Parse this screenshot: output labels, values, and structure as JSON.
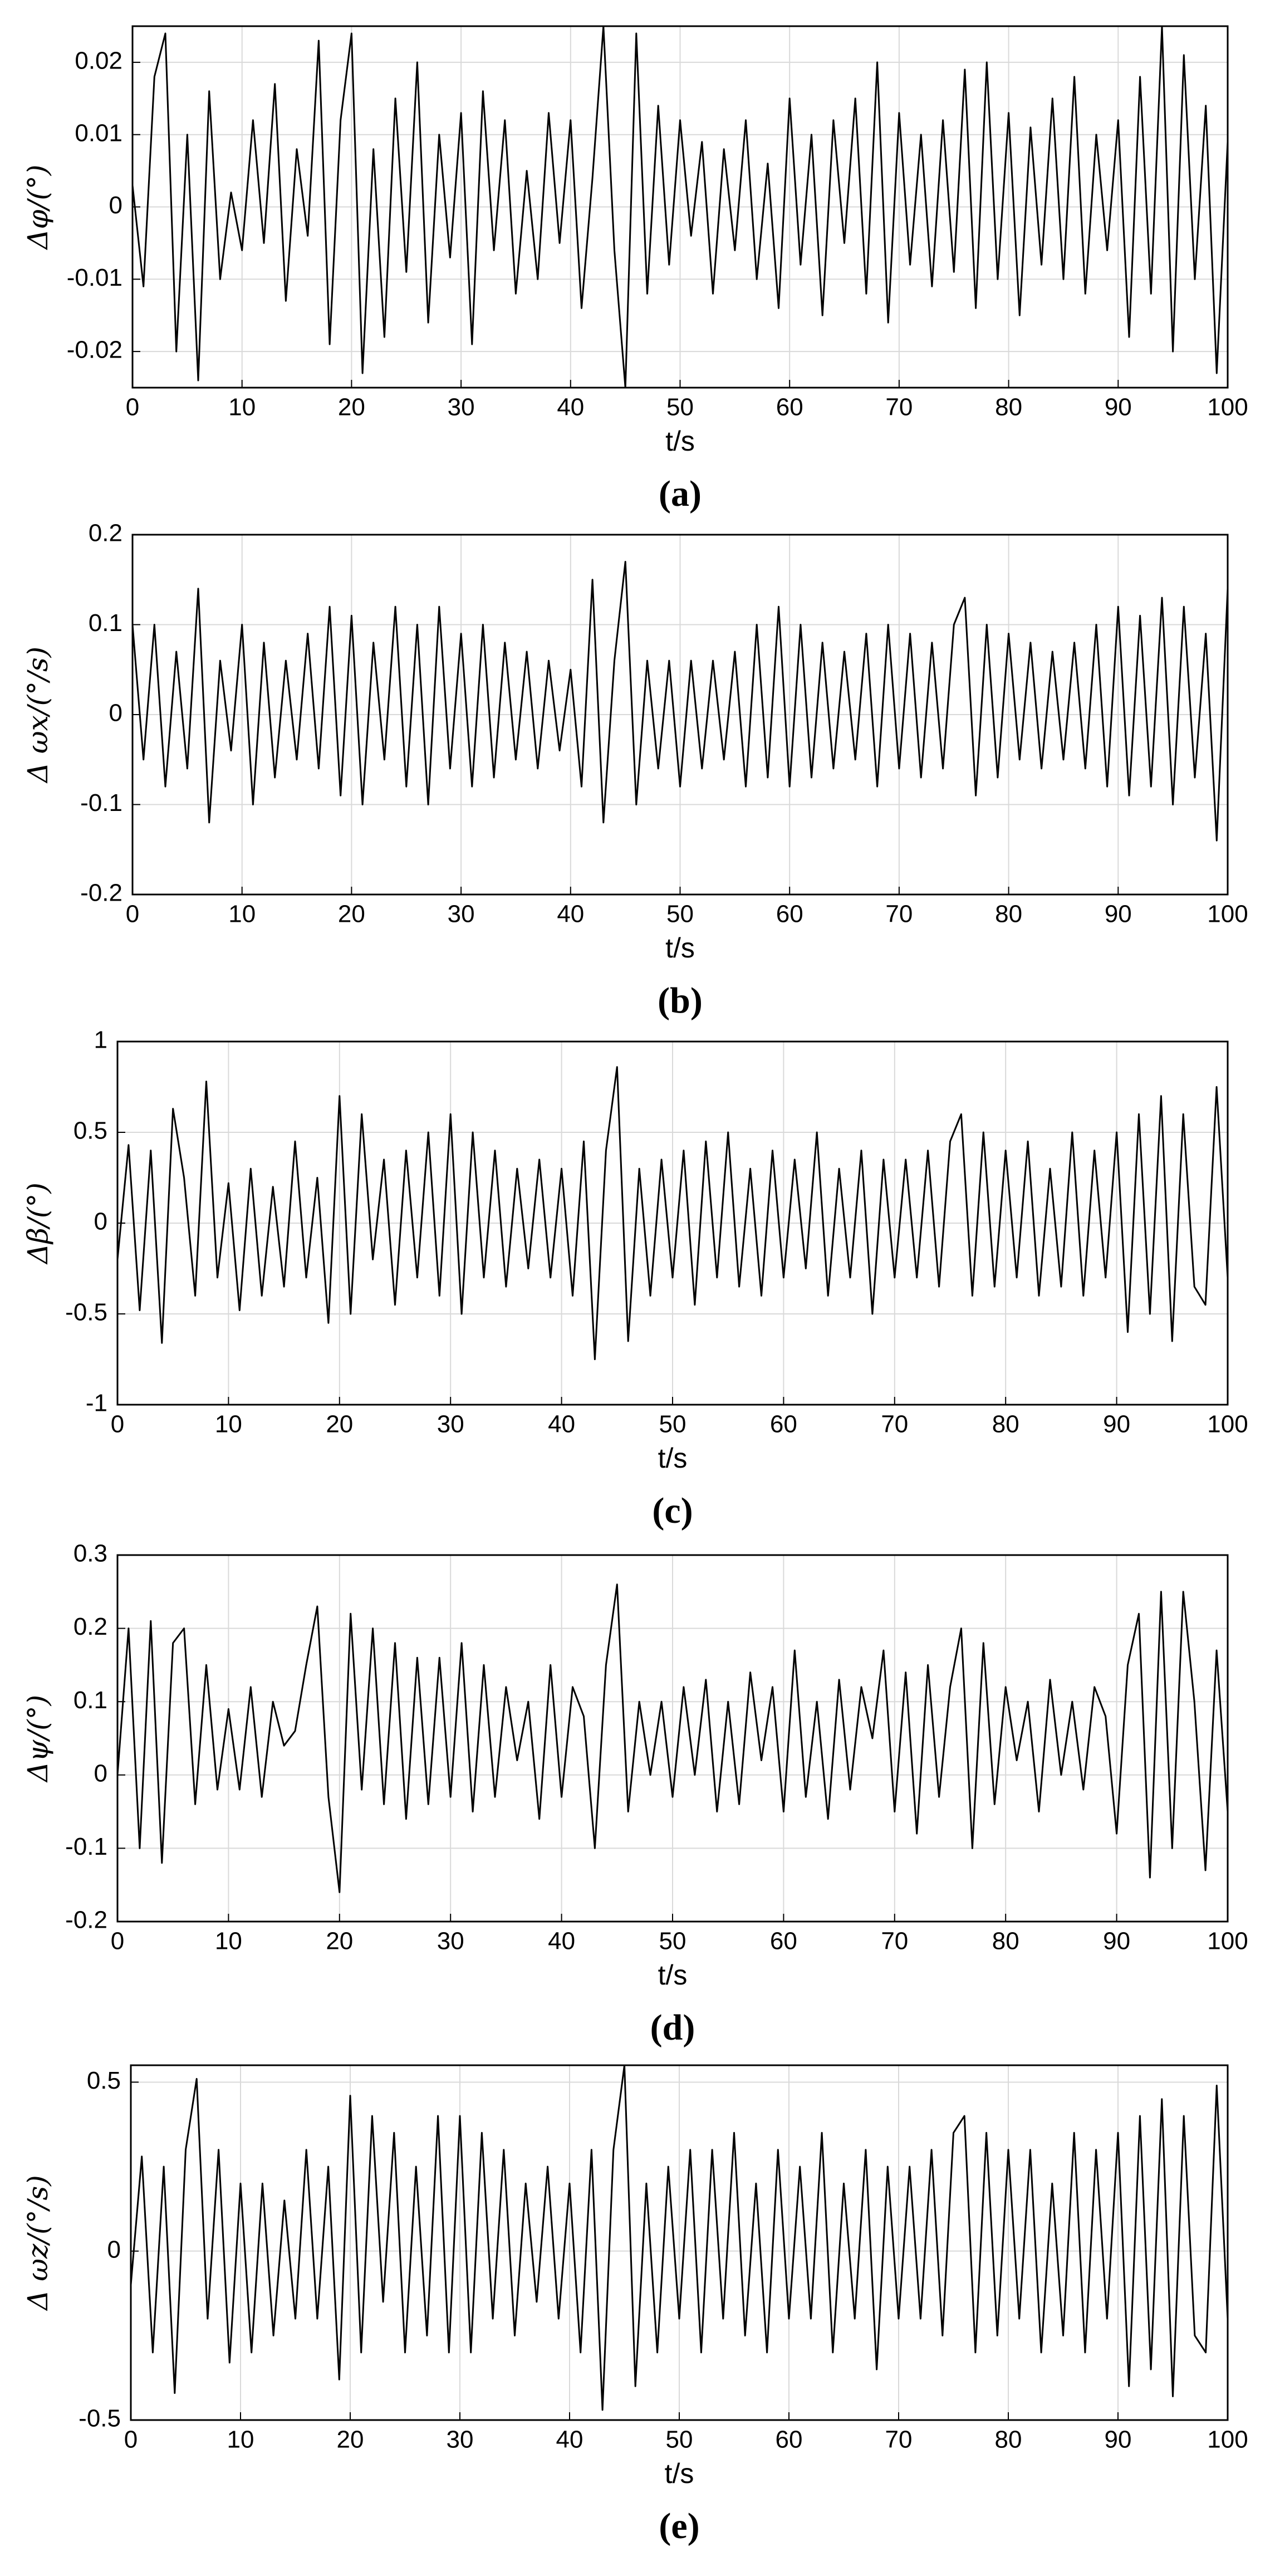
{
  "chart_data": [
    {
      "type": "line",
      "caption": "(a)",
      "xlabel": "t/s",
      "ylabel": "Δφ/(°)",
      "color": "#000000",
      "grid": true,
      "xlim": [
        0,
        100
      ],
      "xticks": [
        0,
        10,
        20,
        30,
        40,
        50,
        60,
        70,
        80,
        90,
        100
      ],
      "ylim": [
        -0.025,
        0.025
      ],
      "yticks": [
        -0.02,
        -0.01,
        0,
        0.01,
        0.02
      ],
      "x": [
        0,
        1,
        2,
        3,
        4,
        5,
        6,
        7,
        8,
        9,
        10,
        11,
        12,
        13,
        14,
        15,
        16,
        17,
        18,
        19,
        20,
        21,
        22,
        23,
        24,
        25,
        26,
        27,
        28,
        29,
        30,
        31,
        32,
        33,
        34,
        35,
        36,
        37,
        38,
        39,
        40,
        41,
        42,
        43,
        44,
        45,
        46,
        47,
        48,
        49,
        50,
        51,
        52,
        53,
        54,
        55,
        56,
        57,
        58,
        59,
        60,
        61,
        62,
        63,
        64,
        65,
        66,
        67,
        68,
        69,
        70,
        71,
        72,
        73,
        74,
        75,
        76,
        77,
        78,
        79,
        80,
        81,
        82,
        83,
        84,
        85,
        86,
        87,
        88,
        89,
        90,
        91,
        92,
        93,
        94,
        95,
        96,
        97,
        98,
        99,
        100
      ],
      "values": [
        0.003,
        -0.011,
        0.018,
        0.024,
        -0.02,
        0.01,
        -0.024,
        0.016,
        -0.01,
        0.002,
        -0.006,
        0.012,
        -0.005,
        0.017,
        -0.013,
        0.008,
        -0.004,
        0.023,
        -0.019,
        0.012,
        0.024,
        -0.023,
        0.008,
        -0.018,
        0.015,
        -0.009,
        0.02,
        -0.016,
        0.01,
        -0.007,
        0.013,
        -0.019,
        0.016,
        -0.006,
        0.012,
        -0.012,
        0.005,
        -0.01,
        0.013,
        -0.005,
        0.012,
        -0.014,
        0.004,
        0.025,
        -0.006,
        -0.025,
        0.024,
        -0.012,
        0.014,
        -0.008,
        0.012,
        -0.004,
        0.009,
        -0.012,
        0.008,
        -0.006,
        0.012,
        -0.01,
        0.006,
        -0.014,
        0.015,
        -0.008,
        0.01,
        -0.015,
        0.012,
        -0.005,
        0.015,
        -0.012,
        0.02,
        -0.016,
        0.013,
        -0.008,
        0.01,
        -0.011,
        0.012,
        -0.009,
        0.019,
        -0.014,
        0.02,
        -0.01,
        0.013,
        -0.015,
        0.011,
        -0.008,
        0.015,
        -0.01,
        0.018,
        -0.012,
        0.01,
        -0.006,
        0.012,
        -0.018,
        0.018,
        -0.012,
        0.025,
        -0.02,
        0.021,
        -0.01,
        0.014,
        -0.023,
        0.009
      ]
    },
    {
      "type": "line",
      "caption": "(b)",
      "xlabel": "t/s",
      "ylabel": "Δ ωx/(°/s)",
      "color": "#000000",
      "grid": true,
      "xlim": [
        0,
        100
      ],
      "xticks": [
        0,
        10,
        20,
        30,
        40,
        50,
        60,
        70,
        80,
        90,
        100
      ],
      "ylim": [
        -0.2,
        0.2
      ],
      "yticks": [
        -0.2,
        -0.1,
        0,
        0.1,
        0.2
      ],
      "x": [
        0,
        1,
        2,
        3,
        4,
        5,
        6,
        7,
        8,
        9,
        10,
        11,
        12,
        13,
        14,
        15,
        16,
        17,
        18,
        19,
        20,
        21,
        22,
        23,
        24,
        25,
        26,
        27,
        28,
        29,
        30,
        31,
        32,
        33,
        34,
        35,
        36,
        37,
        38,
        39,
        40,
        41,
        42,
        43,
        44,
        45,
        46,
        47,
        48,
        49,
        50,
        51,
        52,
        53,
        54,
        55,
        56,
        57,
        58,
        59,
        60,
        61,
        62,
        63,
        64,
        65,
        66,
        67,
        68,
        69,
        70,
        71,
        72,
        73,
        74,
        75,
        76,
        77,
        78,
        79,
        80,
        81,
        82,
        83,
        84,
        85,
        86,
        87,
        88,
        89,
        90,
        91,
        92,
        93,
        94,
        95,
        96,
        97,
        98,
        99,
        100
      ],
      "values": [
        0.1,
        -0.05,
        0.1,
        -0.08,
        0.07,
        -0.06,
        0.14,
        -0.12,
        0.06,
        -0.04,
        0.1,
        -0.1,
        0.08,
        -0.07,
        0.06,
        -0.05,
        0.09,
        -0.06,
        0.12,
        -0.09,
        0.11,
        -0.1,
        0.08,
        -0.05,
        0.12,
        -0.08,
        0.1,
        -0.1,
        0.12,
        -0.06,
        0.09,
        -0.08,
        0.1,
        -0.07,
        0.08,
        -0.05,
        0.07,
        -0.06,
        0.06,
        -0.04,
        0.05,
        -0.08,
        0.15,
        -0.12,
        0.06,
        0.17,
        -0.1,
        0.06,
        -0.06,
        0.06,
        -0.08,
        0.06,
        -0.06,
        0.06,
        -0.05,
        0.07,
        -0.08,
        0.1,
        -0.07,
        0.12,
        -0.08,
        0.1,
        -0.07,
        0.08,
        -0.06,
        0.07,
        -0.05,
        0.09,
        -0.08,
        0.1,
        -0.06,
        0.09,
        -0.07,
        0.08,
        -0.06,
        0.1,
        0.13,
        -0.09,
        0.1,
        -0.07,
        0.09,
        -0.05,
        0.08,
        -0.06,
        0.07,
        -0.05,
        0.08,
        -0.06,
        0.1,
        -0.08,
        0.12,
        -0.09,
        0.11,
        -0.08,
        0.13,
        -0.1,
        0.12,
        -0.07,
        0.09,
        -0.14,
        0.14
      ]
    },
    {
      "type": "line",
      "caption": "(c)",
      "xlabel": "t/s",
      "ylabel": "Δβ/(°)",
      "color": "#000000",
      "grid": true,
      "xlim": [
        0,
        100
      ],
      "xticks": [
        0,
        10,
        20,
        30,
        40,
        50,
        60,
        70,
        80,
        90,
        100
      ],
      "ylim": [
        -1,
        1
      ],
      "yticks": [
        -1,
        -0.5,
        0,
        0.5,
        1
      ],
      "x": [
        0,
        1,
        2,
        3,
        4,
        5,
        6,
        7,
        8,
        9,
        10,
        11,
        12,
        13,
        14,
        15,
        16,
        17,
        18,
        19,
        20,
        21,
        22,
        23,
        24,
        25,
        26,
        27,
        28,
        29,
        30,
        31,
        32,
        33,
        34,
        35,
        36,
        37,
        38,
        39,
        40,
        41,
        42,
        43,
        44,
        45,
        46,
        47,
        48,
        49,
        50,
        51,
        52,
        53,
        54,
        55,
        56,
        57,
        58,
        59,
        60,
        61,
        62,
        63,
        64,
        65,
        66,
        67,
        68,
        69,
        70,
        71,
        72,
        73,
        74,
        75,
        76,
        77,
        78,
        79,
        80,
        81,
        82,
        83,
        84,
        85,
        86,
        87,
        88,
        89,
        90,
        91,
        92,
        93,
        94,
        95,
        96,
        97,
        98,
        99,
        100
      ],
      "values": [
        -0.2,
        0.43,
        -0.48,
        0.4,
        -0.66,
        0.63,
        0.25,
        -0.4,
        0.78,
        -0.3,
        0.22,
        -0.48,
        0.3,
        -0.4,
        0.2,
        -0.35,
        0.45,
        -0.3,
        0.25,
        -0.55,
        0.7,
        -0.5,
        0.6,
        -0.2,
        0.35,
        -0.45,
        0.4,
        -0.3,
        0.5,
        -0.4,
        0.6,
        -0.5,
        0.5,
        -0.3,
        0.4,
        -0.35,
        0.3,
        -0.25,
        0.35,
        -0.3,
        0.3,
        -0.4,
        0.45,
        -0.75,
        0.4,
        0.86,
        -0.65,
        0.3,
        -0.4,
        0.35,
        -0.3,
        0.4,
        -0.45,
        0.45,
        -0.3,
        0.5,
        -0.35,
        0.3,
        -0.4,
        0.4,
        -0.3,
        0.35,
        -0.25,
        0.5,
        -0.4,
        0.3,
        -0.3,
        0.4,
        -0.5,
        0.35,
        -0.3,
        0.35,
        -0.3,
        0.4,
        -0.35,
        0.45,
        0.6,
        -0.4,
        0.5,
        -0.35,
        0.4,
        -0.3,
        0.45,
        -0.4,
        0.3,
        -0.35,
        0.5,
        -0.4,
        0.4,
        -0.3,
        0.5,
        -0.6,
        0.6,
        -0.5,
        0.7,
        -0.65,
        0.6,
        -0.35,
        -0.45,
        0.75,
        -0.3
      ]
    },
    {
      "type": "line",
      "caption": "(d)",
      "xlabel": "t/s",
      "ylabel": "Δψ/(°)",
      "color": "#000000",
      "grid": true,
      "xlim": [
        0,
        100
      ],
      "xticks": [
        0,
        10,
        20,
        30,
        40,
        50,
        60,
        70,
        80,
        90,
        100
      ],
      "ylim": [
        -0.2,
        0.3
      ],
      "yticks": [
        -0.2,
        -0.1,
        0,
        0.1,
        0.2,
        0.3
      ],
      "x": [
        0,
        1,
        2,
        3,
        4,
        5,
        6,
        7,
        8,
        9,
        10,
        11,
        12,
        13,
        14,
        15,
        16,
        17,
        18,
        19,
        20,
        21,
        22,
        23,
        24,
        25,
        26,
        27,
        28,
        29,
        30,
        31,
        32,
        33,
        34,
        35,
        36,
        37,
        38,
        39,
        40,
        41,
        42,
        43,
        44,
        45,
        46,
        47,
        48,
        49,
        50,
        51,
        52,
        53,
        54,
        55,
        56,
        57,
        58,
        59,
        60,
        61,
        62,
        63,
        64,
        65,
        66,
        67,
        68,
        69,
        70,
        71,
        72,
        73,
        74,
        75,
        76,
        77,
        78,
        79,
        80,
        81,
        82,
        83,
        84,
        85,
        86,
        87,
        88,
        89,
        90,
        91,
        92,
        93,
        94,
        95,
        96,
        97,
        98,
        99,
        100
      ],
      "values": [
        0,
        0.2,
        -0.1,
        0.21,
        -0.12,
        0.18,
        0.2,
        -0.04,
        0.15,
        -0.02,
        0.09,
        -0.02,
        0.12,
        -0.03,
        0.1,
        0.04,
        0.06,
        0.15,
        0.23,
        -0.03,
        -0.16,
        0.22,
        -0.02,
        0.2,
        -0.04,
        0.18,
        -0.06,
        0.16,
        -0.04,
        0.16,
        -0.03,
        0.18,
        -0.05,
        0.15,
        -0.03,
        0.12,
        0.02,
        0.1,
        -0.06,
        0.15,
        -0.03,
        0.12,
        0.08,
        -0.1,
        0.15,
        0.26,
        -0.05,
        0.1,
        0,
        0.1,
        -0.03,
        0.12,
        0,
        0.13,
        -0.05,
        0.1,
        -0.04,
        0.14,
        0.02,
        0.12,
        -0.05,
        0.17,
        -0.03,
        0.1,
        -0.06,
        0.13,
        -0.02,
        0.12,
        0.05,
        0.17,
        -0.05,
        0.14,
        -0.08,
        0.15,
        -0.03,
        0.12,
        0.2,
        -0.1,
        0.18,
        -0.04,
        0.12,
        0.02,
        0.1,
        -0.05,
        0.13,
        0,
        0.1,
        -0.02,
        0.12,
        0.08,
        -0.08,
        0.15,
        0.22,
        -0.14,
        0.25,
        -0.1,
        0.25,
        0.1,
        -0.13,
        0.17,
        -0.05
      ]
    },
    {
      "type": "line",
      "caption": "(e)",
      "xlabel": "t/s",
      "ylabel": "Δ ωz/(°/s)",
      "color": "#000000",
      "grid": true,
      "xlim": [
        0,
        100
      ],
      "xticks": [
        0,
        10,
        20,
        30,
        40,
        50,
        60,
        70,
        80,
        90,
        100
      ],
      "ylim": [
        -0.5,
        0.55
      ],
      "yticks": [
        -0.5,
        0,
        0.5
      ],
      "x": [
        0,
        1,
        2,
        3,
        4,
        5,
        6,
        7,
        8,
        9,
        10,
        11,
        12,
        13,
        14,
        15,
        16,
        17,
        18,
        19,
        20,
        21,
        22,
        23,
        24,
        25,
        26,
        27,
        28,
        29,
        30,
        31,
        32,
        33,
        34,
        35,
        36,
        37,
        38,
        39,
        40,
        41,
        42,
        43,
        44,
        45,
        46,
        47,
        48,
        49,
        50,
        51,
        52,
        53,
        54,
        55,
        56,
        57,
        58,
        59,
        60,
        61,
        62,
        63,
        64,
        65,
        66,
        67,
        68,
        69,
        70,
        71,
        72,
        73,
        74,
        75,
        76,
        77,
        78,
        79,
        80,
        81,
        82,
        83,
        84,
        85,
        86,
        87,
        88,
        89,
        90,
        91,
        92,
        93,
        94,
        95,
        96,
        97,
        98,
        99,
        100
      ],
      "values": [
        -0.1,
        0.28,
        -0.3,
        0.25,
        -0.42,
        0.3,
        0.51,
        -0.2,
        0.3,
        -0.33,
        0.2,
        -0.3,
        0.2,
        -0.25,
        0.15,
        -0.2,
        0.3,
        -0.2,
        0.25,
        -0.38,
        0.46,
        -0.3,
        0.4,
        -0.15,
        0.35,
        -0.3,
        0.25,
        -0.25,
        0.4,
        -0.3,
        0.4,
        -0.3,
        0.35,
        -0.2,
        0.3,
        -0.25,
        0.2,
        -0.15,
        0.25,
        -0.2,
        0.2,
        -0.3,
        0.3,
        -0.47,
        0.3,
        0.55,
        -0.4,
        0.2,
        -0.3,
        0.25,
        -0.2,
        0.3,
        -0.3,
        0.3,
        -0.2,
        0.35,
        -0.25,
        0.2,
        -0.3,
        0.3,
        -0.2,
        0.25,
        -0.2,
        0.35,
        -0.3,
        0.2,
        -0.2,
        0.3,
        -0.35,
        0.25,
        -0.2,
        0.25,
        -0.2,
        0.3,
        -0.25,
        0.35,
        0.4,
        -0.3,
        0.35,
        -0.25,
        0.3,
        -0.2,
        0.3,
        -0.3,
        0.2,
        -0.25,
        0.35,
        -0.3,
        0.3,
        -0.2,
        0.35,
        -0.4,
        0.4,
        -0.35,
        0.45,
        -0.43,
        0.4,
        -0.25,
        -0.3,
        0.49,
        -0.2
      ]
    }
  ]
}
